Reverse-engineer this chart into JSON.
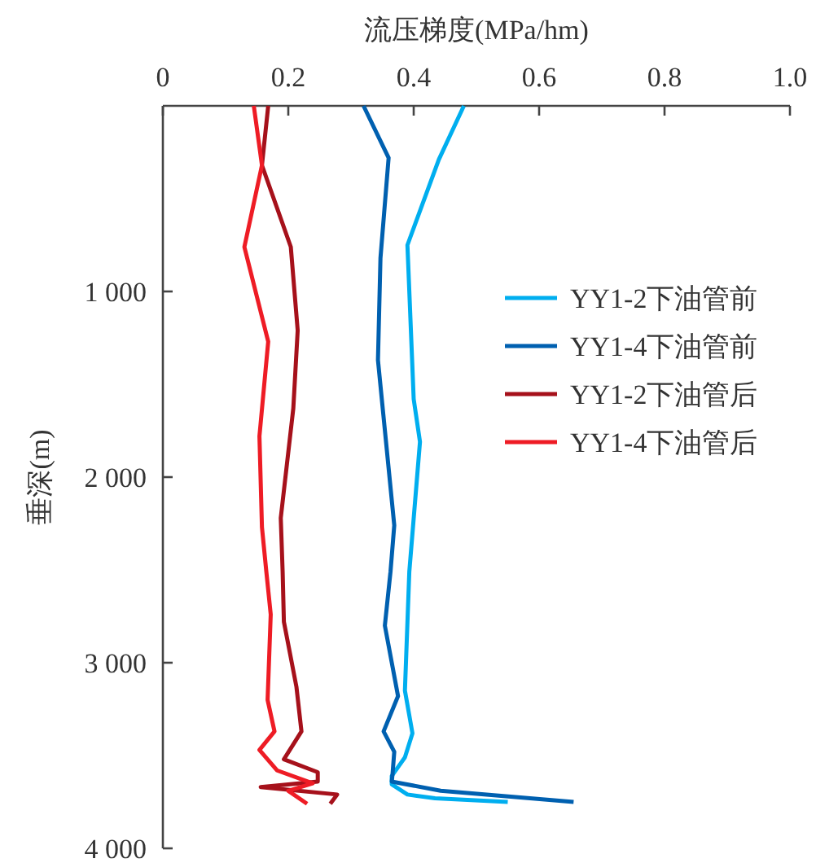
{
  "chart_data": {
    "type": "line",
    "xlabel": "流压梯度(MPa/hm)",
    "ylabel": "垂深(m)",
    "xlim": [
      0,
      1
    ],
    "xticks": [
      0,
      0.2,
      0.4,
      0.6,
      0.8,
      {
        "value": 1,
        "label": "1.0"
      }
    ],
    "ylim": [
      4000,
      0
    ],
    "yticks": [
      {
        "value": 1000,
        "label": "1 000"
      },
      {
        "value": 2000,
        "label": "2 000"
      },
      {
        "value": 3000,
        "label": "3 000"
      },
      {
        "value": 4000,
        "label": "4 000"
      }
    ],
    "grid": false,
    "legend": "right",
    "marker": "none",
    "line_style": "solid",
    "series": [
      {
        "name": "YY1-2下油管前",
        "color": "#00aeef",
        "x": [
          0.48,
          0.44,
          0.39,
          0.4,
          0.41,
          0.393,
          0.386,
          0.398,
          0.386,
          0.365,
          0.365,
          0.39,
          0.434,
          0.55
        ],
        "values": [
          0,
          290,
          750,
          1580,
          1810,
          2510,
          3150,
          3380,
          3510,
          3610,
          3655,
          3710,
          3730,
          3750
        ]
      },
      {
        "name": "YY1-4下油管前",
        "color": "#0060b0",
        "x": [
          0.32,
          0.36,
          0.347,
          0.343,
          0.369,
          0.363,
          0.354,
          0.375,
          0.352,
          0.369,
          0.366,
          0.365,
          0.443,
          0.655
        ],
        "values": [
          0,
          280,
          820,
          1370,
          2260,
          2510,
          2800,
          3180,
          3370,
          3480,
          3610,
          3640,
          3690,
          3750
        ]
      },
      {
        "name": "YY1-2下油管后",
        "color": "#a6111b",
        "x": [
          0.168,
          0.158,
          0.204,
          0.215,
          0.208,
          0.188,
          0.191,
          0.193,
          0.213,
          0.221,
          0.193,
          0.247,
          0.247,
          0.156,
          0.278,
          0.267
        ],
        "values": [
          0,
          320,
          760,
          1210,
          1630,
          2220,
          2510,
          2780,
          3130,
          3370,
          3520,
          3590,
          3640,
          3670,
          3710,
          3760
        ]
      },
      {
        "name": "YY1-4下油管后",
        "color": "#ee1c25",
        "x": [
          0.145,
          0.158,
          0.13,
          0.168,
          0.154,
          0.158,
          0.165,
          0.172,
          0.167,
          0.178,
          0.154,
          0.182,
          0.239,
          0.2,
          0.23
        ],
        "values": [
          0,
          320,
          760,
          1270,
          1780,
          2270,
          2510,
          2740,
          3200,
          3370,
          3470,
          3580,
          3650,
          3690,
          3760
        ]
      }
    ]
  }
}
